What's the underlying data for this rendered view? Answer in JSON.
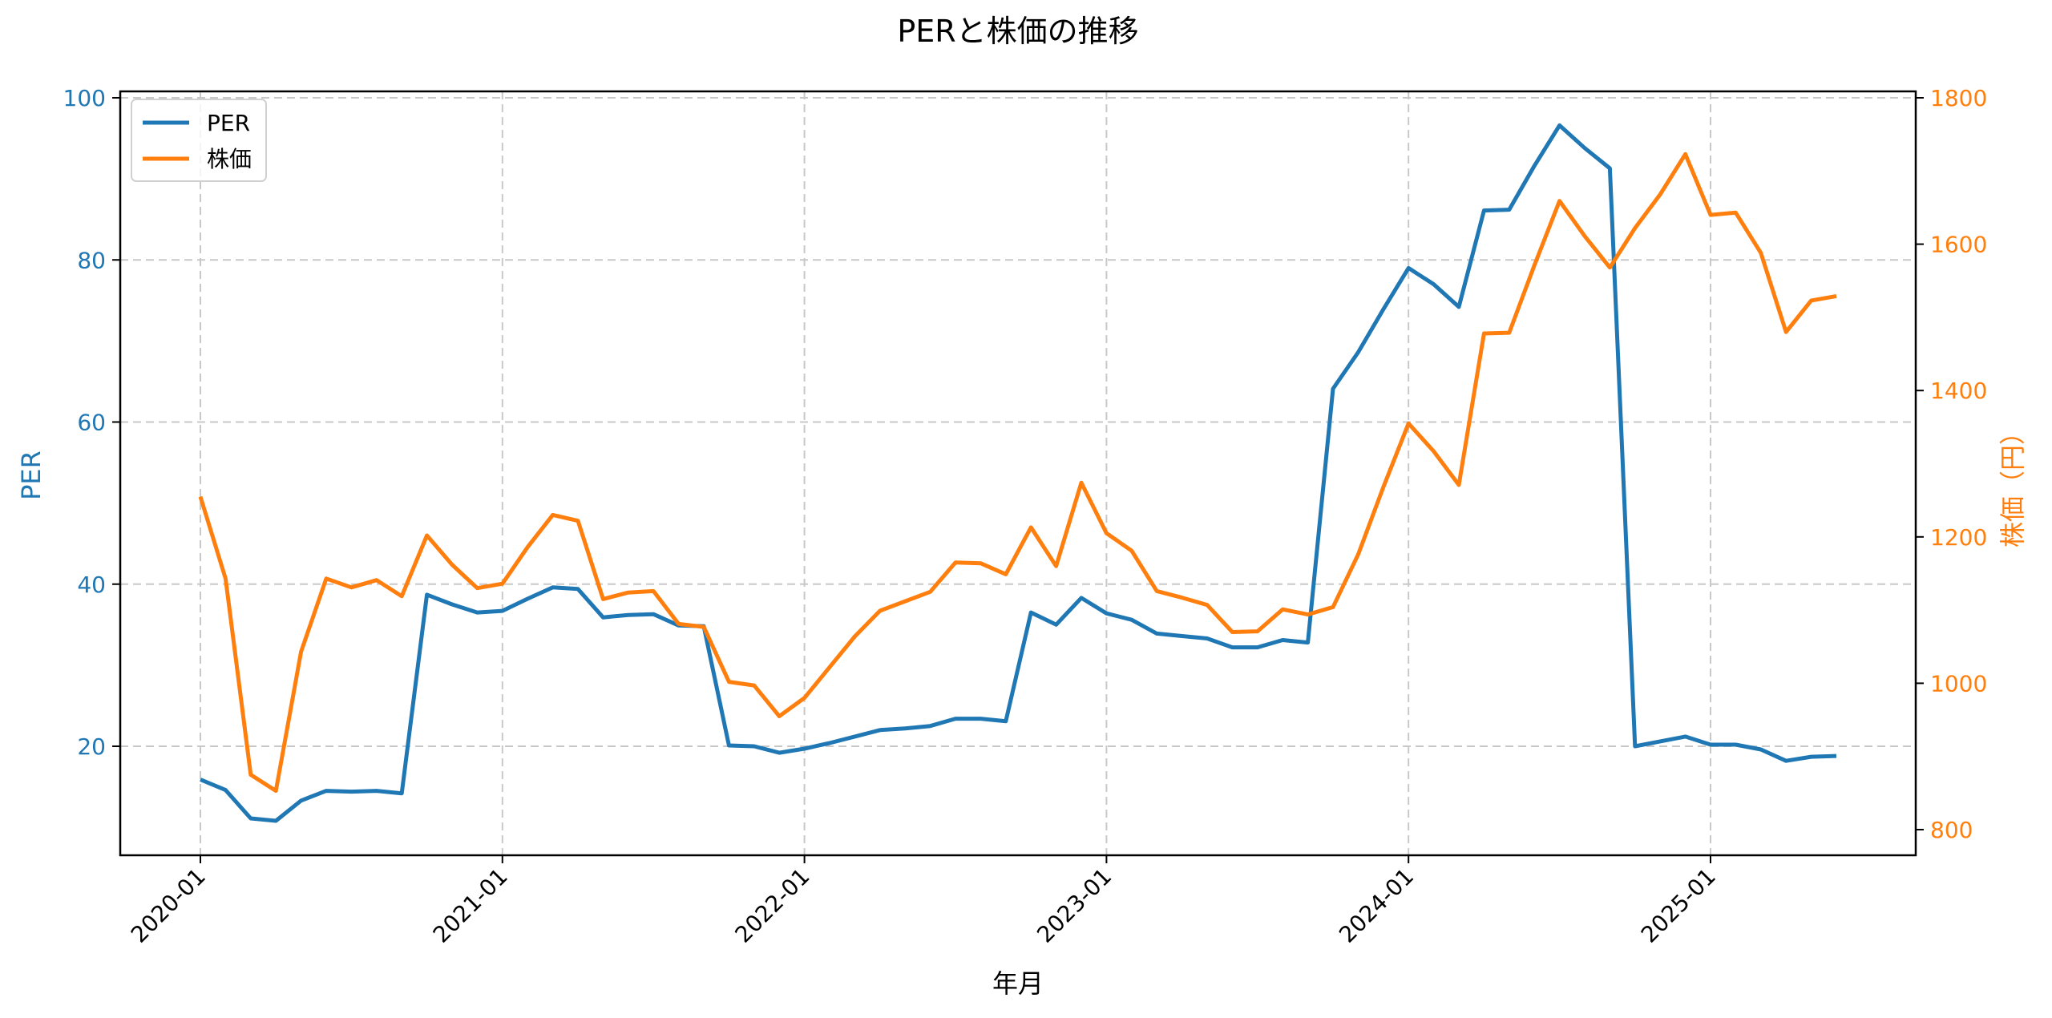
{
  "chart_data": {
    "type": "line",
    "title": "PERと株価の推移",
    "xlabel": "年月",
    "ylabel_left": "PER",
    "ylabel_right": "株価（円）",
    "ylim_left": [
      7,
      100
    ],
    "ylim_right": [
      800,
      1800
    ],
    "yticks_left": [
      20,
      40,
      60,
      80,
      100
    ],
    "yticks_right": [
      800,
      1000,
      1200,
      1400,
      1600,
      1800
    ],
    "xticks": [
      "2020-01",
      "2021-01",
      "2022-01",
      "2023-01",
      "2024-01",
      "2025-01"
    ],
    "grid": true,
    "legend_position": "upper left",
    "x_start": "2020-01",
    "x_end": "2025-06",
    "series": [
      {
        "name": "PER",
        "axis": "left",
        "color": "#1f77b4",
        "values": [
          15.9,
          14.6,
          11.1,
          10.8,
          13.3,
          14.5,
          14.4,
          14.5,
          14.2,
          38.7,
          37.5,
          36.5,
          36.7,
          38.2,
          39.6,
          39.4,
          35.9,
          36.2,
          36.3,
          34.9,
          34.8,
          20.1,
          20.0,
          19.2,
          19.7,
          20.4,
          21.2,
          22.0,
          22.2,
          22.5,
          23.4,
          23.4,
          23.1,
          36.5,
          35.0,
          38.3,
          36.4,
          35.6,
          33.9,
          33.6,
          33.3,
          32.2,
          32.2,
          33.1,
          32.8,
          64.1,
          68.6,
          73.9,
          79.0,
          77.0,
          74.2,
          86.1,
          86.2,
          91.6,
          96.6,
          93.8,
          91.3,
          20.0,
          20.6,
          21.2,
          20.2,
          20.2,
          19.6,
          18.2,
          18.7,
          18.8
        ]
      },
      {
        "name": "株価",
        "axis": "right",
        "color": "#ff7f0e",
        "values": [
          1255,
          1143,
          875,
          853,
          1043,
          1143,
          1131,
          1141,
          1119,
          1202,
          1162,
          1130,
          1136,
          1186,
          1230,
          1222,
          1115,
          1124,
          1126,
          1081,
          1077,
          1002,
          997,
          955,
          980,
          1022,
          1064,
          1099,
          1112,
          1125,
          1165,
          1164,
          1149,
          1213,
          1160,
          1274,
          1205,
          1181,
          1126,
          1117,
          1107,
          1070,
          1071,
          1101,
          1094,
          1104,
          1176,
          1268,
          1355,
          1317,
          1271,
          1478,
          1479,
          1571,
          1659,
          1611,
          1568,
          1622,
          1668,
          1723,
          1640,
          1643,
          1588,
          1480,
          1523,
          1529
        ]
      }
    ]
  },
  "legend": {
    "items": [
      {
        "label": "PER",
        "color": "#1f77b4"
      },
      {
        "label": "株価",
        "color": "#ff7f0e"
      }
    ]
  }
}
